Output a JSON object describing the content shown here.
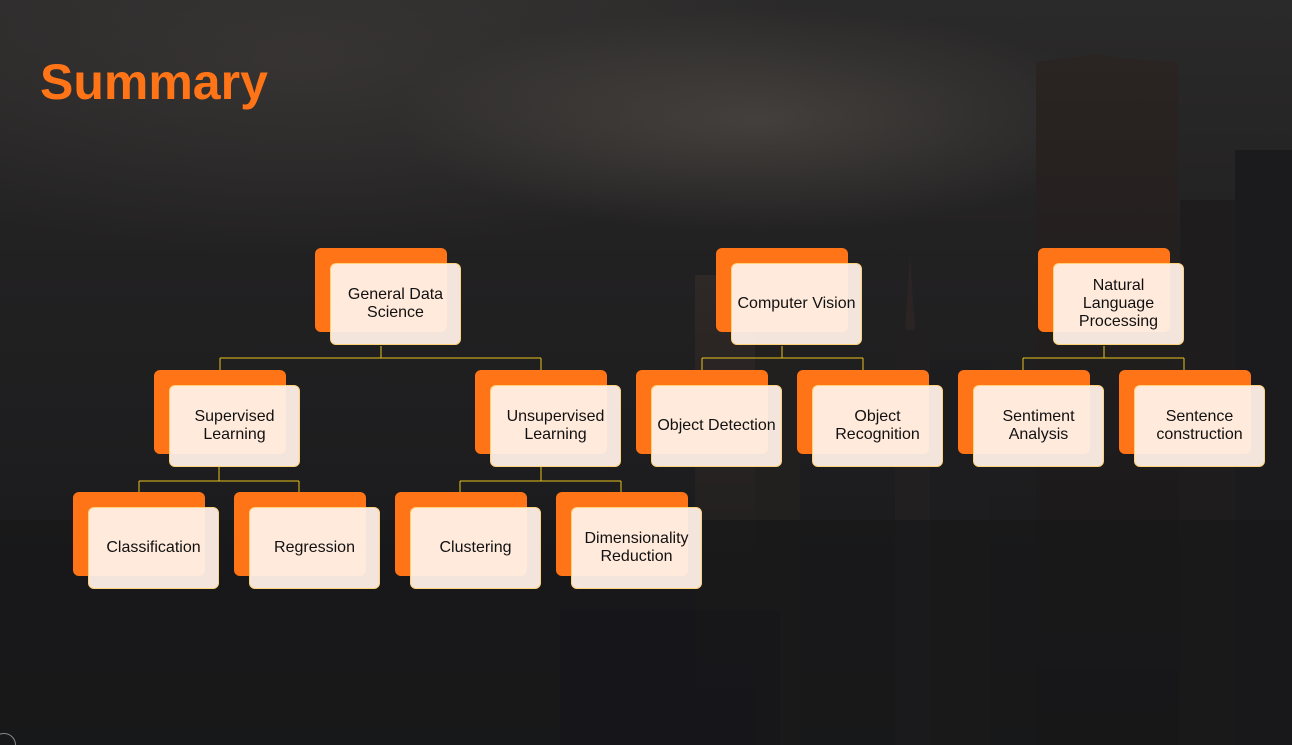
{
  "title": "Summary",
  "colors": {
    "accent": "#ff7417",
    "card_fill": "#fff0e7",
    "card_border": "#ffd27a",
    "connector": "#e8c21e"
  },
  "nodes": {
    "general": "General Data Science",
    "supervised": "Supervised Learning",
    "unsupervised": "Unsupervised Learning",
    "classification": "Classification",
    "regression": "Regression",
    "clustering": "Clustering",
    "dimensionality": "Dimensionality Reduction",
    "cv": "Computer Vision",
    "object_detection": "Object Detection",
    "object_recognition": "Object Recognition",
    "nlp": "Natural Language Processing",
    "sentiment": "Sentiment Analysis",
    "sentence": "Sentence construction"
  }
}
